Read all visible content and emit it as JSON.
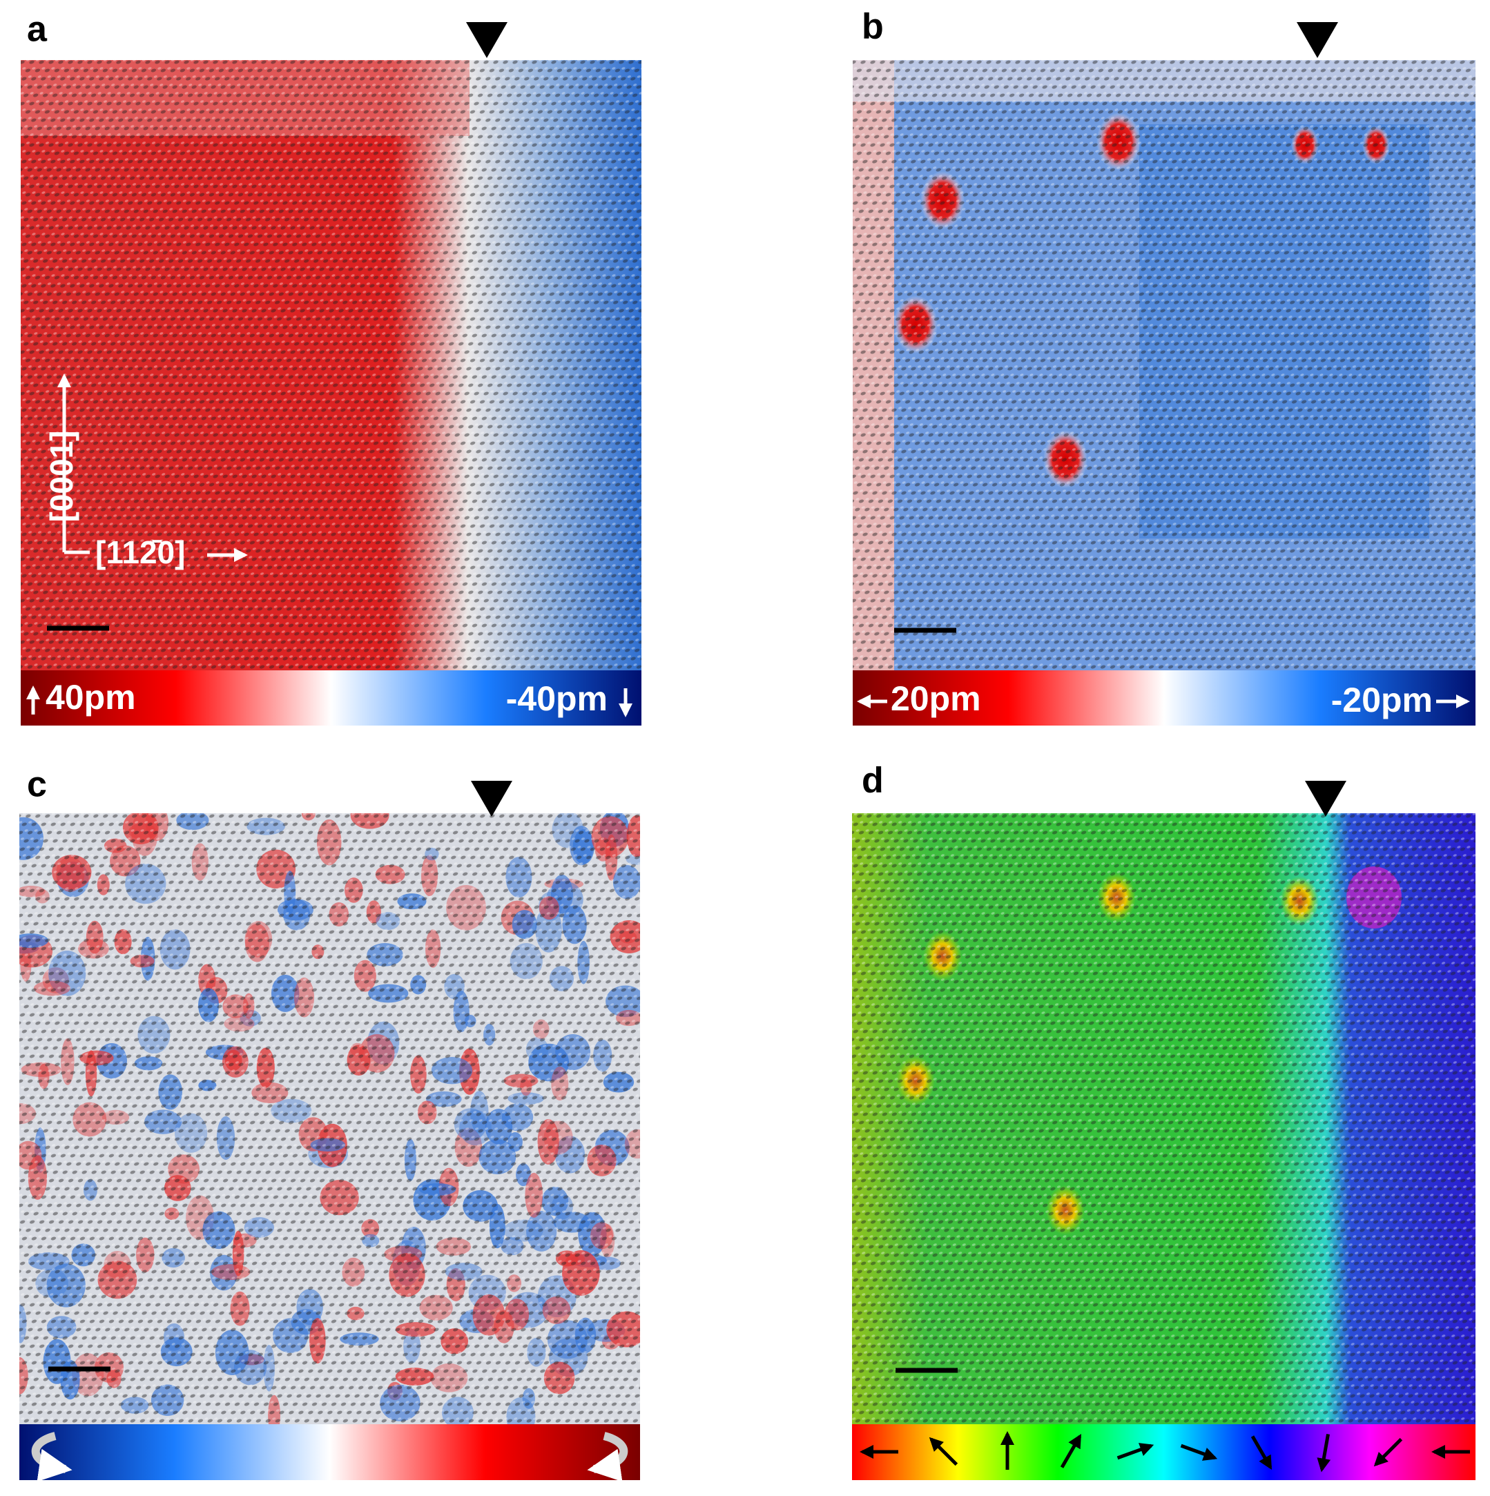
{
  "panels": [
    {
      "label": "a",
      "colorbar_left": "40pm",
      "colorbar_right": "-40pm",
      "direction_vertical": "[0001]",
      "direction_horizontal": "[112̄0]"
    },
    {
      "label": "b",
      "colorbar_left": "20pm",
      "colorbar_right": "-20pm"
    },
    {
      "label": "c"
    },
    {
      "label": "d"
    }
  ]
}
